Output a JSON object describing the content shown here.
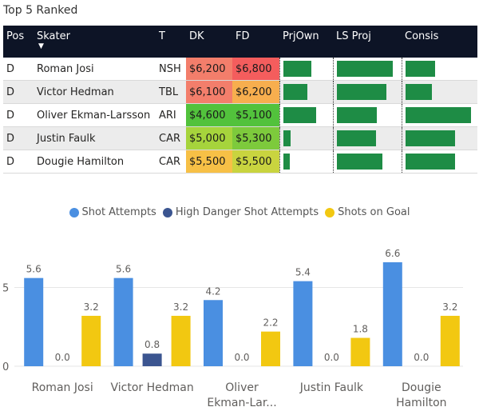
{
  "table": {
    "title": "Top 5 Ranked",
    "columns": {
      "pos": "Pos",
      "skater": "Skater",
      "team": "T",
      "dk": "DK",
      "fd": "FD",
      "prjown": "PrjOwn",
      "lsproj": "LS Proj",
      "consis": "Consis"
    },
    "sort_indicator": "▼",
    "rows": [
      {
        "pos": "D",
        "skater": "Roman Josi",
        "team": "NSH",
        "dk": "$6,200",
        "fd": "$6,800",
        "dk_color": "#f37e6b",
        "fd_color": "#f45d5d",
        "prjown": 0.7,
        "lsproj": 1.0,
        "consis": 0.45
      },
      {
        "pos": "D",
        "skater": "Victor Hedman",
        "team": "TBL",
        "dk": "$6,100",
        "fd": "$6,200",
        "dk_color": "#f37e6b",
        "fd_color": "#f7ae4e",
        "prjown": 0.6,
        "lsproj": 0.88,
        "consis": 0.4
      },
      {
        "pos": "D",
        "skater": "Oliver Ekman-Larsson",
        "team": "ARI",
        "dk": "$4,600",
        "fd": "$5,100",
        "dk_color": "#52c23c",
        "fd_color": "#52c23c",
        "prjown": 0.82,
        "lsproj": 0.72,
        "consis": 1.0
      },
      {
        "pos": "D",
        "skater": "Justin Faulk",
        "team": "CAR",
        "dk": "$5,000",
        "fd": "$5,300",
        "dk_color": "#a6d43c",
        "fd_color": "#7dca3c",
        "prjown": 0.18,
        "lsproj": 0.7,
        "consis": 0.75
      },
      {
        "pos": "D",
        "skater": "Dougie Hamilton",
        "team": "CAR",
        "dk": "$5,500",
        "fd": "$5,500",
        "dk_color": "#f7c046",
        "fd_color": "#c9d43f",
        "prjown": 0.15,
        "lsproj": 0.82,
        "consis": 0.75
      }
    ]
  },
  "legend": [
    {
      "label": "Shot Attempts",
      "color": "#4a8fe1"
    },
    {
      "label": "High Danger Shot Attempts",
      "color": "#3b5590"
    },
    {
      "label": "Shots on Goal",
      "color": "#f2c811"
    }
  ],
  "chart_data": {
    "type": "bar",
    "categories": [
      "Roman Josi",
      "Victor Hedman",
      "Oliver Ekman-Lar...",
      "Justin Faulk",
      "Dougie Hamilton"
    ],
    "series": [
      {
        "name": "Shot Attempts",
        "color": "#4a8fe1",
        "values": [
          5.6,
          5.6,
          4.2,
          5.4,
          6.6
        ]
      },
      {
        "name": "High Danger Shot Attempts",
        "color": "#3b5590",
        "values": [
          0.0,
          0.8,
          0.0,
          0.0,
          0.0
        ]
      },
      {
        "name": "Shots on Goal",
        "color": "#f2c811",
        "values": [
          3.2,
          3.2,
          2.2,
          1.8,
          3.2
        ]
      }
    ],
    "yticks": [
      0,
      5
    ],
    "ylim": [
      0,
      7
    ],
    "title": "",
    "xlabel": "",
    "ylabel": ""
  }
}
